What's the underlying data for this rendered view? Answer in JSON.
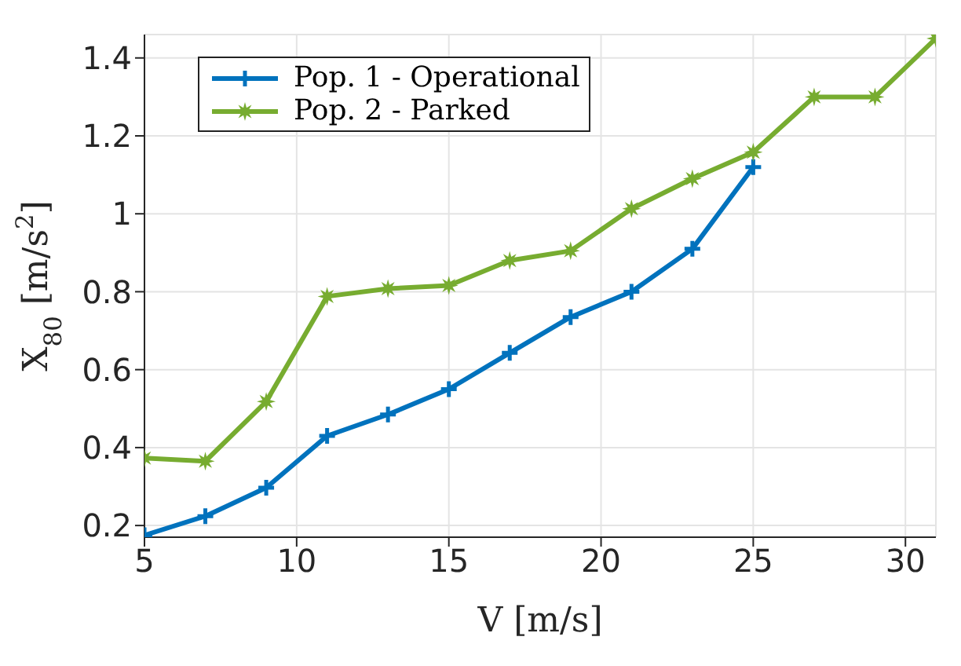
{
  "chart_data": {
    "type": "line",
    "xlabel": "V [m/s]",
    "ylabel": "X$_{80}$ [m/s$^{2}$]",
    "x": [
      5,
      7,
      9,
      11,
      13,
      15,
      17,
      19,
      21,
      23,
      25,
      27,
      29,
      31
    ],
    "series": [
      {
        "name": "Pop. 1 - Operational",
        "color": "#0072bd",
        "marker": "cross",
        "values": [
          0.175,
          0.224,
          0.297,
          0.43,
          0.485,
          0.55,
          0.643,
          0.735,
          0.8,
          0.91,
          1.12,
          null,
          null,
          null
        ]
      },
      {
        "name": "Pop. 2 - Parked",
        "color": "#77ac30",
        "marker": "star",
        "values": [
          0.373,
          0.365,
          0.518,
          0.788,
          0.808,
          0.816,
          0.88,
          0.905,
          1.013,
          1.09,
          1.158,
          1.3,
          1.3,
          1.45
        ]
      }
    ],
    "xlim": [
      5,
      31
    ],
    "xticks": [
      5,
      10,
      15,
      20,
      25,
      30
    ],
    "ylim": [
      0.17,
      1.46
    ],
    "yticks": [
      0.2,
      0.4,
      0.6,
      0.8,
      1,
      1.2,
      1.4
    ],
    "grid": true,
    "legend": "top left",
    "line_style": "solid"
  }
}
